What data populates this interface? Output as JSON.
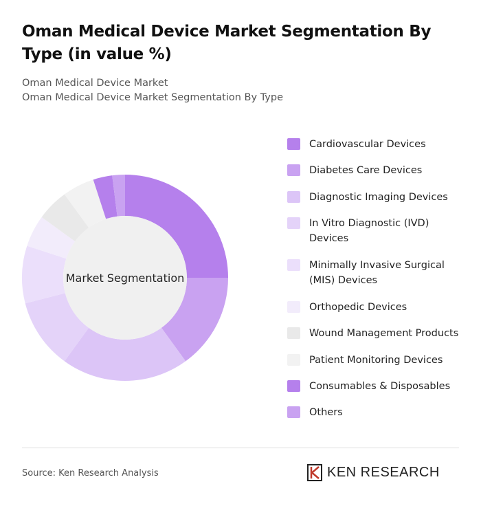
{
  "chart_data": {
    "type": "donut",
    "title": "Oman Medical Device Market Segmentation By Type (in value %)",
    "subtitle": [
      "Oman Medical Device Market",
      "Oman Medical Device Market Segmentation By Type"
    ],
    "center_label": "Market Segmentation",
    "categories": [
      "Cardiovascular Devices",
      "Diabetes Care Devices",
      "Diagnostic Imaging Devices",
      "In Vitro Diagnostic (IVD) Devices",
      "Minimally Invasive Surgical (MIS) Devices",
      "Orthopedic Devices",
      "Wound Management Products",
      "Patient Monitoring Devices",
      "Consumables & Disposables",
      "Others"
    ],
    "values": [
      25,
      15,
      20,
      11,
      9,
      5,
      5,
      5,
      3,
      2
    ],
    "colors": [
      "#b580ec",
      "#c9a2f1",
      "#dcc5f7",
      "#e4d3f9",
      "#ebdffb",
      "#f2ecfb",
      "#e9e9e9",
      "#f2f2f2",
      "#b580ec",
      "#c9a2f1"
    ],
    "source": "Source: Ken Research Analysis",
    "brand": "KEN RESEARCH"
  }
}
